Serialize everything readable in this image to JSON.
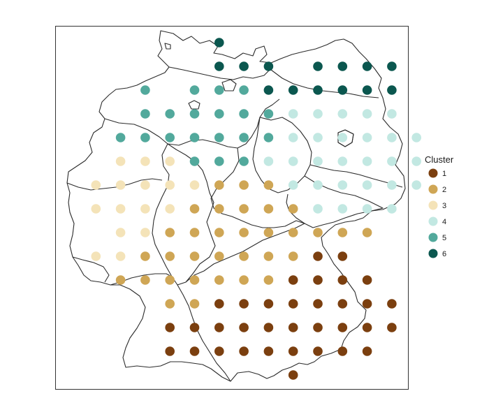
{
  "legend": {
    "title": "Cluster",
    "items": [
      {
        "label": "1",
        "color": "#7B3F0F"
      },
      {
        "label": "2",
        "color": "#CFA655"
      },
      {
        "label": "3",
        "color": "#F4E3B8"
      },
      {
        "label": "4",
        "color": "#C2E8E2"
      },
      {
        "label": "5",
        "color": "#52A99C"
      },
      {
        "label": "6",
        "color": "#0B574F"
      }
    ]
  },
  "grid": {
    "columns": [
      "c1",
      "c2",
      "c3",
      "c4",
      "c5",
      "c6",
      "c7",
      "c8",
      "c9",
      "c10",
      "c11",
      "c12",
      "c13",
      "c14"
    ],
    "rows": [
      "............6.",
      ".....6.........",
      ".....6.6.6..6.6.6.6",
      "..5..5.5.6.6.6.6.6.6",
      "..5.5.5.5.5.4.4.4.4.4",
      ".5.5.5.5.5.5.4.4.4.4.4.4",
      "...3.3.3.5.5.5.4.4.4.4.4.4",
      ".3.3.3.3.3.2.2.2.4.4.4.4.4",
      ".3.3.3.3.2.2.2.2.2.4.4.4.4",
      "..3.3.2.2.2.2.2.2.2.2.2",
      ".3.3.2.2.2.2.2.2.1.1.1.",
      "...2.2.2.2.2.2.2.1.1.1.1.",
      ".....2.2.1.1.1.1.1.1.1.1.1",
      "......1.1.1.1.1.1.1.1.1",
      "......1.1.1.1.1.1.1.1",
      "...........1"
    ]
  },
  "clusters": [
    {
      "row": 0,
      "cells": [
        [
          6,
          6
        ]
      ]
    },
    {
      "row": 1,
      "cells": [
        [
          6,
          6
        ],
        [
          7,
          6
        ],
        [
          8,
          6
        ],
        [
          10,
          6
        ],
        [
          11,
          6
        ],
        [
          12,
          6
        ],
        [
          13,
          6
        ]
      ]
    },
    {
      "row": 2,
      "cells": [
        [
          3,
          5
        ],
        [
          5,
          5
        ],
        [
          6,
          5
        ],
        [
          7,
          5
        ],
        [
          8,
          6
        ],
        [
          9,
          6
        ],
        [
          10,
          6
        ],
        [
          11,
          6
        ],
        [
          12,
          6
        ],
        [
          13,
          6
        ]
      ]
    },
    {
      "row": 3,
      "cells": [
        [
          3,
          5
        ],
        [
          4,
          5
        ],
        [
          5,
          5
        ],
        [
          6,
          5
        ],
        [
          7,
          5
        ],
        [
          8,
          5
        ],
        [
          9,
          4
        ],
        [
          10,
          4
        ],
        [
          11,
          4
        ],
        [
          12,
          4
        ],
        [
          13,
          4
        ]
      ]
    },
    {
      "row": 4,
      "cells": [
        [
          2,
          5
        ],
        [
          3,
          5
        ],
        [
          4,
          5
        ],
        [
          5,
          5
        ],
        [
          6,
          5
        ],
        [
          7,
          5
        ],
        [
          8,
          5
        ],
        [
          9,
          4
        ],
        [
          10,
          4
        ],
        [
          11,
          4
        ],
        [
          12,
          4
        ],
        [
          13,
          4
        ],
        [
          14,
          4
        ]
      ]
    },
    {
      "row": 5,
      "cells": [
        [
          2,
          3
        ],
        [
          3,
          3
        ],
        [
          4,
          3
        ],
        [
          5,
          5
        ],
        [
          6,
          5
        ],
        [
          7,
          5
        ],
        [
          8,
          4
        ],
        [
          9,
          4
        ],
        [
          10,
          4
        ],
        [
          11,
          4
        ],
        [
          12,
          4
        ],
        [
          13,
          4
        ],
        [
          14,
          4
        ]
      ]
    },
    {
      "row": 6,
      "cells": [
        [
          1,
          3
        ],
        [
          2,
          3
        ],
        [
          3,
          3
        ],
        [
          4,
          3
        ],
        [
          5,
          3
        ],
        [
          6,
          2
        ],
        [
          7,
          2
        ],
        [
          8,
          2
        ],
        [
          9,
          4
        ],
        [
          10,
          4
        ],
        [
          11,
          4
        ],
        [
          12,
          4
        ],
        [
          13,
          4
        ],
        [
          14,
          4
        ]
      ]
    },
    {
      "row": 7,
      "cells": [
        [
          1,
          3
        ],
        [
          2,
          3
        ],
        [
          3,
          3
        ],
        [
          4,
          3
        ],
        [
          5,
          2
        ],
        [
          6,
          2
        ],
        [
          7,
          2
        ],
        [
          8,
          2
        ],
        [
          9,
          2
        ],
        [
          10,
          4
        ],
        [
          11,
          4
        ],
        [
          12,
          4
        ],
        [
          13,
          4
        ]
      ]
    },
    {
      "row": 8,
      "cells": [
        [
          2,
          3
        ],
        [
          3,
          3
        ],
        [
          4,
          2
        ],
        [
          5,
          2
        ],
        [
          6,
          2
        ],
        [
          7,
          2
        ],
        [
          8,
          2
        ],
        [
          9,
          2
        ],
        [
          10,
          2
        ],
        [
          11,
          2
        ],
        [
          12,
          2
        ]
      ]
    },
    {
      "row": 9,
      "cells": [
        [
          1,
          3
        ],
        [
          2,
          3
        ],
        [
          3,
          2
        ],
        [
          4,
          2
        ],
        [
          5,
          2
        ],
        [
          6,
          2
        ],
        [
          7,
          2
        ],
        [
          8,
          2
        ],
        [
          9,
          2
        ],
        [
          10,
          1
        ],
        [
          11,
          1
        ]
      ]
    },
    {
      "row": 10,
      "cells": [
        [
          2,
          2
        ],
        [
          3,
          2
        ],
        [
          4,
          2
        ],
        [
          5,
          2
        ],
        [
          6,
          2
        ],
        [
          7,
          2
        ],
        [
          8,
          2
        ],
        [
          9,
          1
        ],
        [
          10,
          1
        ],
        [
          11,
          1
        ],
        [
          12,
          1
        ]
      ]
    },
    {
      "row": 11,
      "cells": [
        [
          4,
          2
        ],
        [
          5,
          2
        ],
        [
          6,
          1
        ],
        [
          7,
          1
        ],
        [
          8,
          1
        ],
        [
          9,
          1
        ],
        [
          10,
          1
        ],
        [
          11,
          1
        ],
        [
          12,
          1
        ],
        [
          13,
          1
        ]
      ]
    },
    {
      "row": 12,
      "cells": [
        [
          4,
          1
        ],
        [
          5,
          1
        ],
        [
          6,
          1
        ],
        [
          7,
          1
        ],
        [
          8,
          1
        ],
        [
          9,
          1
        ],
        [
          10,
          1
        ],
        [
          11,
          1
        ],
        [
          12,
          1
        ],
        [
          13,
          1
        ]
      ]
    },
    {
      "row": 13,
      "cells": [
        [
          4,
          1
        ],
        [
          5,
          1
        ],
        [
          6,
          1
        ],
        [
          7,
          1
        ],
        [
          8,
          1
        ],
        [
          9,
          1
        ],
        [
          10,
          1
        ],
        [
          11,
          1
        ],
        [
          12,
          1
        ]
      ]
    },
    {
      "row": 14,
      "cells": [
        [
          9,
          1
        ]
      ]
    }
  ]
}
